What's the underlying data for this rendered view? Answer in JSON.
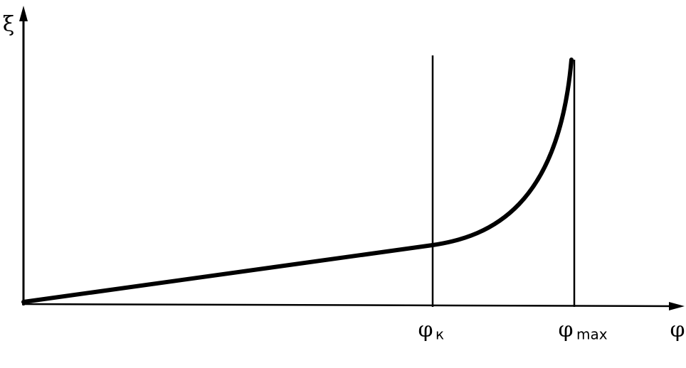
{
  "y_axis": {
    "label": "ξ"
  },
  "x_axis": {
    "label": "φ"
  },
  "markers": [
    {
      "symbol": "φ",
      "subscript": "к"
    },
    {
      "symbol": "φ",
      "subscript": "max"
    }
  ]
}
